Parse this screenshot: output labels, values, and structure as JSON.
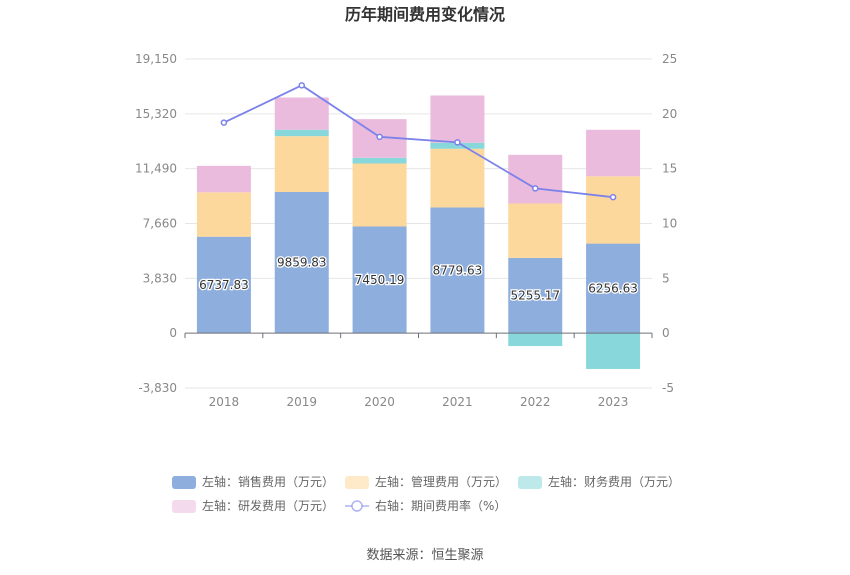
{
  "chart_data": {
    "type": "bar",
    "stacked": true,
    "title": "历年期间费用变化情况",
    "categories": [
      "2018",
      "2019",
      "2020",
      "2021",
      "2022",
      "2023"
    ],
    "left_axis": {
      "min": -3830,
      "max": 19150,
      "ticks": [
        "-3,830",
        "0",
        "3,830",
        "7,660",
        "11,490",
        "15,320",
        "19,150"
      ],
      "tick_values": [
        -3830,
        0,
        3830,
        7660,
        11490,
        15320,
        19150
      ]
    },
    "right_axis": {
      "min": -5,
      "max": 25,
      "ticks": [
        "-5",
        "0",
        "5",
        "10",
        "15",
        "20",
        "25"
      ],
      "tick_values": [
        -5,
        0,
        5,
        10,
        15,
        20,
        25
      ]
    },
    "series": [
      {
        "name": "左轴：销售费用（万元）",
        "type": "bar",
        "axis": "left",
        "color": "#8eaedd",
        "values": [
          6737.83,
          9859.83,
          7450.19,
          8779.63,
          5255.17,
          6256.63
        ],
        "labels": [
          "6737.83",
          "9859.83",
          "7450.19",
          "8779.63",
          "5255.17",
          "6256.63"
        ]
      },
      {
        "name": "左轴：管理费用（万元）",
        "type": "bar",
        "axis": "left",
        "color": "#fdd89c",
        "values": [
          3100,
          3900,
          4400,
          4100,
          3800,
          4700
        ]
      },
      {
        "name": "左轴：财务费用（万元）",
        "type": "bar",
        "axis": "left",
        "color": "#88d7db",
        "values": [
          0,
          450,
          400,
          420,
          -900,
          -2500
        ]
      },
      {
        "name": "左轴：研发费用（万元）",
        "type": "bar",
        "axis": "left",
        "color": "#eabbdc",
        "values": [
          1850,
          2250,
          2700,
          3300,
          3400,
          3250
        ]
      },
      {
        "name": "右轴：期间费用率（%）",
        "type": "line",
        "axis": "right",
        "color": "#7b82ea",
        "values": [
          19.2,
          22.6,
          17.9,
          17.4,
          13.2,
          12.4
        ]
      }
    ],
    "legend_position": "bottom",
    "grid": true
  },
  "source": "数据来源：恒生聚源"
}
